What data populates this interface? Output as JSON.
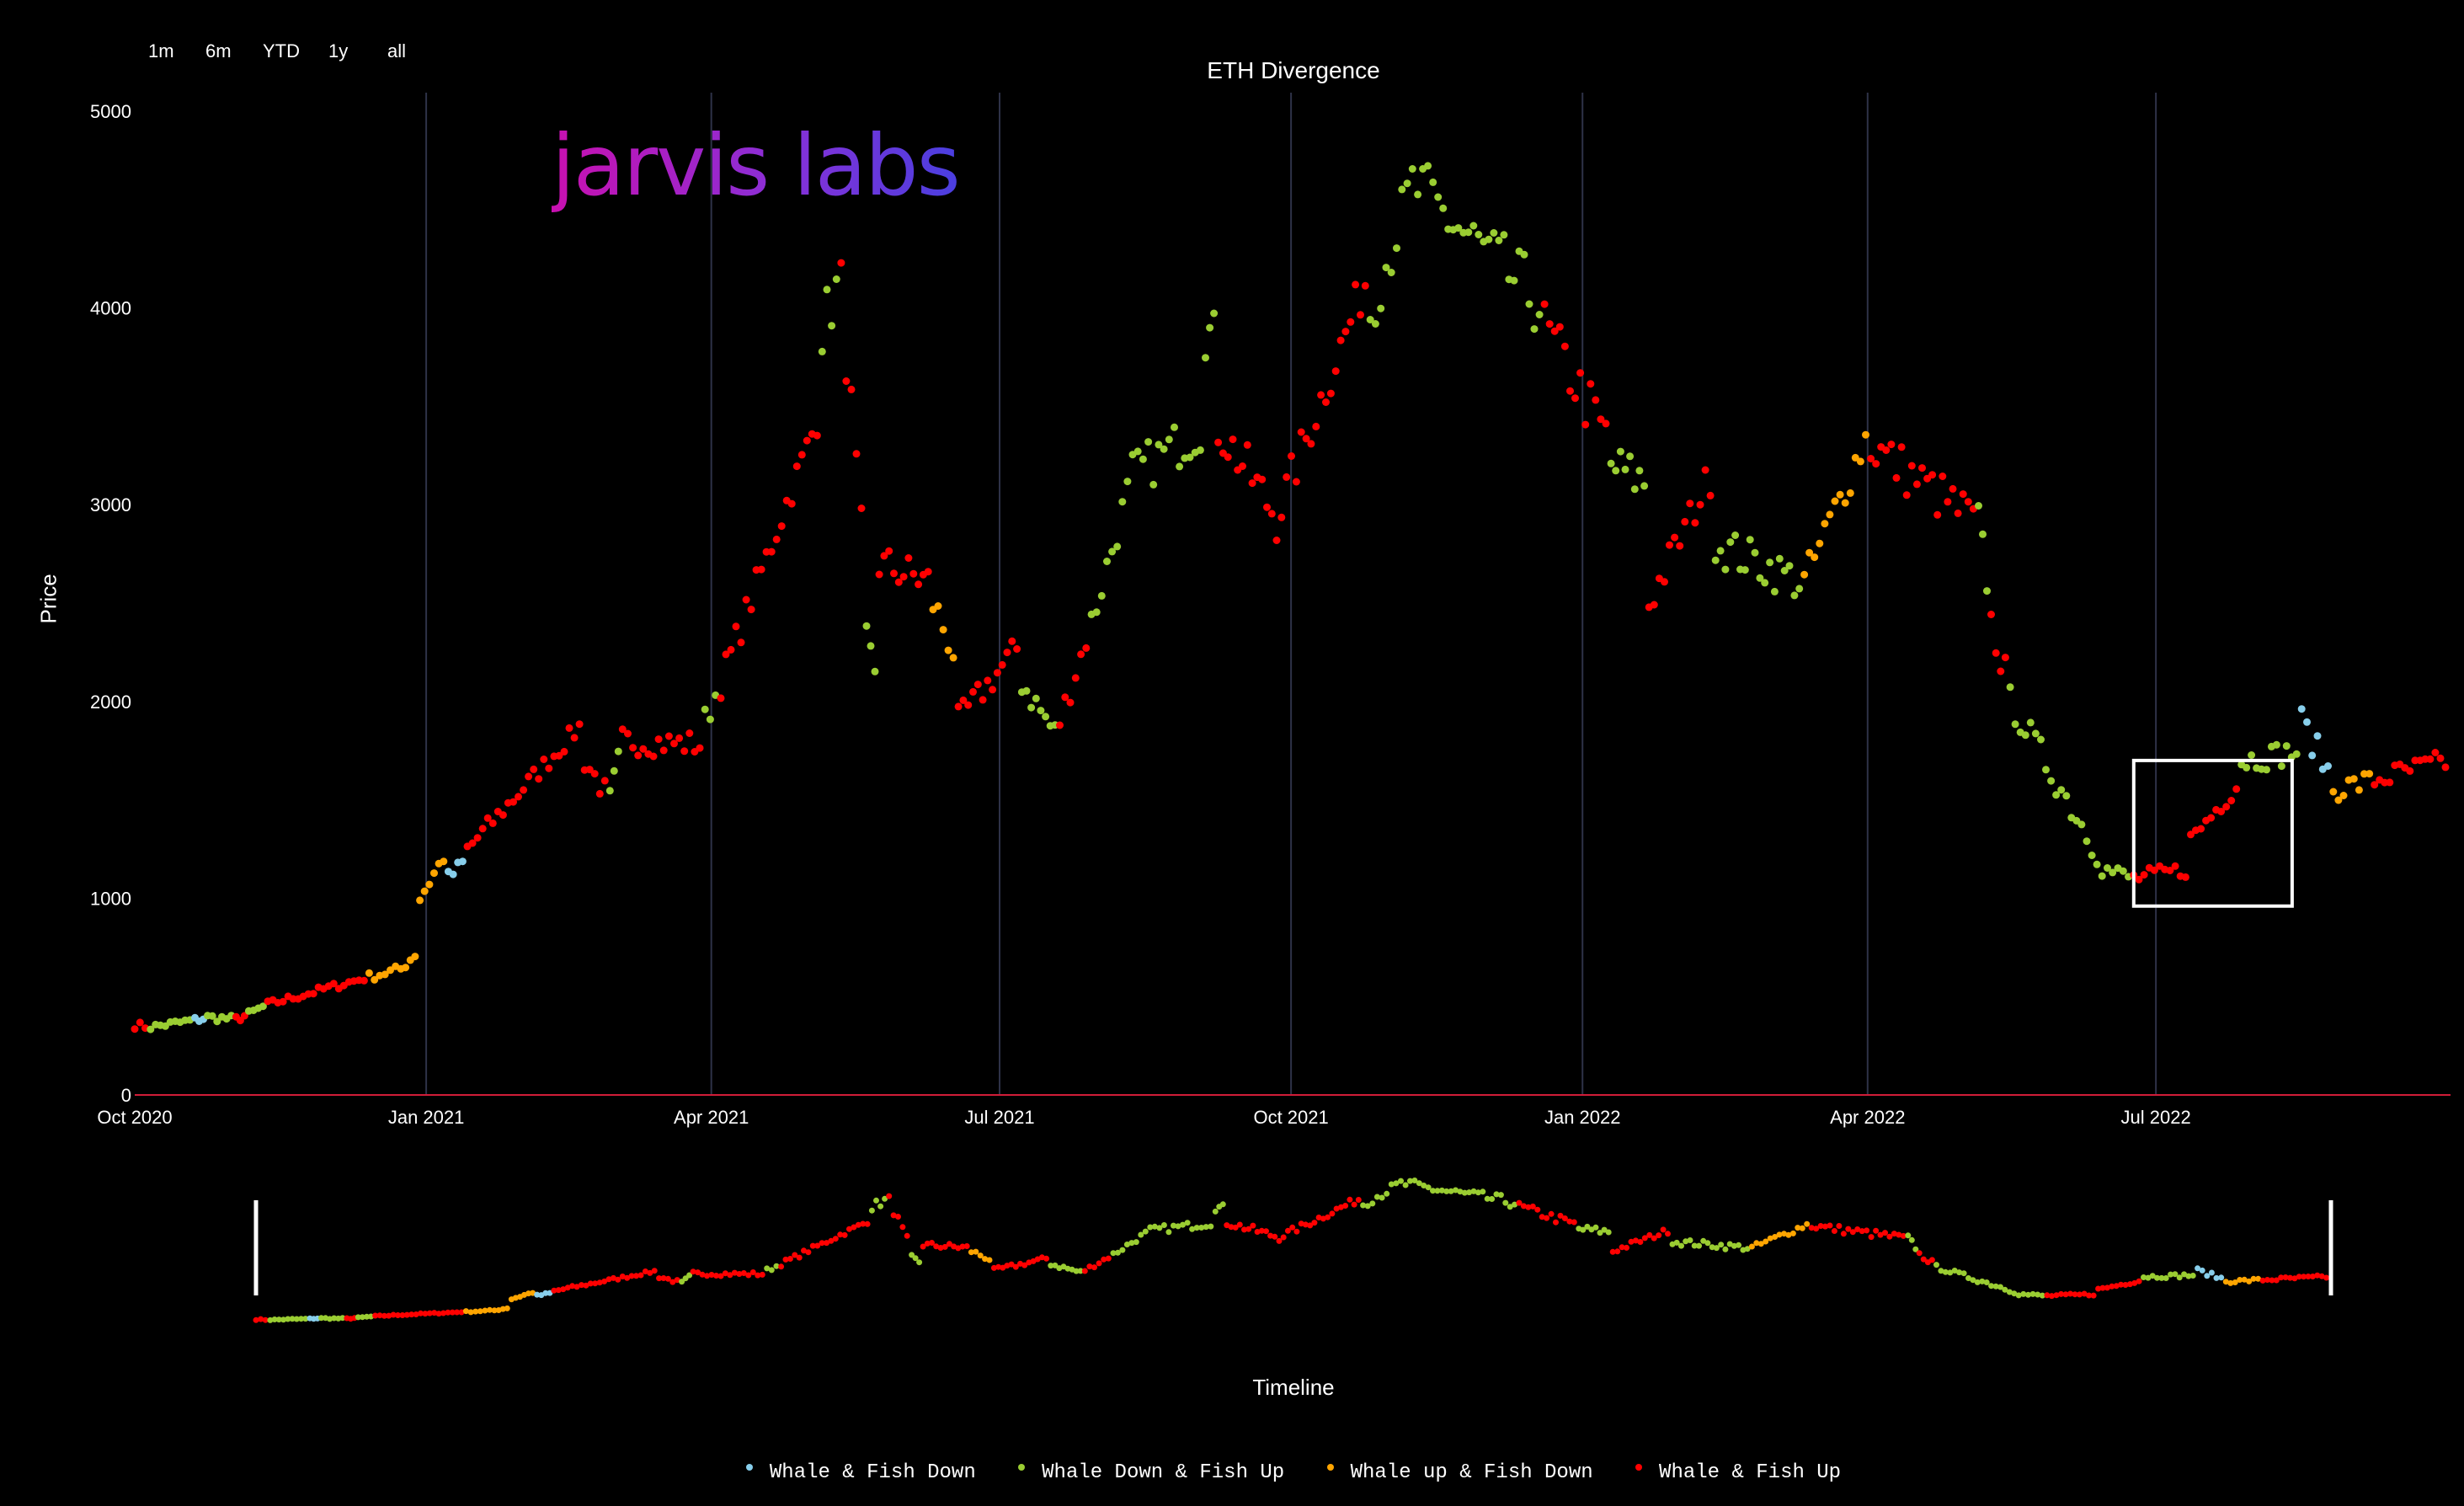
{
  "range_buttons": [
    "1m",
    "6m",
    "YTD",
    "1y",
    "all"
  ],
  "logo_text": "jarvis labs",
  "colors": {
    "background": "#000000",
    "whale_fish_down": "#87ceeb",
    "whale_down_fish_up": "#9acd32",
    "whale_up_fish_down": "#ffa500",
    "whale_fish_up": "#ff0000",
    "zero_line": "#d01c38",
    "gridline": "#2e3248",
    "highlight_box": "#ffffff"
  },
  "chart_data": {
    "type": "scatter",
    "title": "ETH Divergence",
    "xlabel": "Timeline",
    "ylabel": "Price",
    "ylim": [
      0,
      5000
    ],
    "xlim": [
      "2020-10-01",
      "2022-10-02"
    ],
    "y_ticks": [
      "0",
      "1000",
      "2000",
      "3000",
      "4000",
      "5000"
    ],
    "x_ticks": [
      {
        "date": "2020-10-01",
        "label": "Oct 2020"
      },
      {
        "date": "2021-01-01",
        "label": "Jan 2021"
      },
      {
        "date": "2021-04-01",
        "label": "Apr 2021"
      },
      {
        "date": "2021-07-01",
        "label": "Jul 2021"
      },
      {
        "date": "2021-10-01",
        "label": "Oct 2021"
      },
      {
        "date": "2022-01-01",
        "label": "Jan 2022"
      },
      {
        "date": "2022-04-01",
        "label": "Apr 2022"
      },
      {
        "date": "2022-07-01",
        "label": "Jul 2022"
      }
    ],
    "grid": "vertical",
    "legend_position": "bottom-center",
    "categories": [
      {
        "key": "D",
        "name": "Whale & Fish Down",
        "color": "#87ceeb"
      },
      {
        "key": "G",
        "name": "Whale Down & Fish Up",
        "color": "#9acd32"
      },
      {
        "key": "O",
        "name": "Whale up & Fish Down",
        "color": "#ffa500"
      },
      {
        "key": "R",
        "name": "Whale & Fish Up",
        "color": "#ff0000"
      }
    ],
    "highlight_box": {
      "x": [
        "2022-06-24",
        "2022-08-13"
      ],
      "y": [
        960,
        1700
      ]
    },
    "segments": [
      {
        "from": "2020-10-01",
        "to": "2020-10-06",
        "p0": 355,
        "p1": 345,
        "cat": "R"
      },
      {
        "from": "2020-10-06",
        "to": "2020-10-20",
        "p0": 345,
        "p1": 380,
        "cat": "G"
      },
      {
        "from": "2020-10-20",
        "to": "2020-10-24",
        "p0": 380,
        "p1": 395,
        "cat": "D"
      },
      {
        "from": "2020-10-24",
        "to": "2020-11-02",
        "p0": 395,
        "p1": 385,
        "cat": "G"
      },
      {
        "from": "2020-11-02",
        "to": "2020-11-06",
        "p0": 385,
        "p1": 410,
        "cat": "R"
      },
      {
        "from": "2020-11-06",
        "to": "2020-11-12",
        "p0": 410,
        "p1": 460,
        "cat": "G"
      },
      {
        "from": "2020-11-12",
        "to": "2020-12-14",
        "p0": 460,
        "p1": 600,
        "cat": "R"
      },
      {
        "from": "2020-12-14",
        "to": "2020-12-24",
        "p0": 600,
        "p1": 640,
        "cat": "O"
      },
      {
        "from": "2020-12-24",
        "to": "2020-12-30",
        "p0": 640,
        "p1": 740,
        "cat": "O"
      },
      {
        "from": "2020-12-30",
        "to": "2021-01-08",
        "p0": 1000,
        "p1": 1250,
        "cat": "O"
      },
      {
        "from": "2021-01-08",
        "to": "2021-01-14",
        "p0": 1100,
        "p1": 1200,
        "cat": "D"
      },
      {
        "from": "2021-01-14",
        "to": "2021-02-20",
        "p0": 1250,
        "p1": 1900,
        "cat": "R"
      },
      {
        "from": "2021-02-20",
        "to": "2021-02-28",
        "p0": 1700,
        "p1": 1500,
        "cat": "R"
      },
      {
        "from": "2021-02-28",
        "to": "2021-03-04",
        "p0": 1500,
        "p1": 1800,
        "cat": "G"
      },
      {
        "from": "2021-03-04",
        "to": "2021-03-30",
        "p0": 1800,
        "p1": 1780,
        "cat": "R"
      },
      {
        "from": "2021-03-30",
        "to": "2021-04-04",
        "p0": 1900,
        "p1": 2100,
        "cat": "G"
      },
      {
        "from": "2021-04-04",
        "to": "2021-05-06",
        "p0": 2100,
        "p1": 3500,
        "cat": "R"
      },
      {
        "from": "2021-05-06",
        "to": "2021-05-12",
        "p0": 3900,
        "p1": 4150,
        "cat": "G"
      },
      {
        "from": "2021-05-12",
        "to": "2021-05-20",
        "p0": 4100,
        "p1": 2500,
        "cat": "R"
      },
      {
        "from": "2021-05-20",
        "to": "2021-05-24",
        "p0": 2300,
        "p1": 2100,
        "cat": "G"
      },
      {
        "from": "2021-05-24",
        "to": "2021-06-10",
        "p0": 2700,
        "p1": 2600,
        "cat": "R"
      },
      {
        "from": "2021-06-10",
        "to": "2021-06-18",
        "p0": 2500,
        "p1": 2200,
        "cat": "O"
      },
      {
        "from": "2021-06-18",
        "to": "2021-07-08",
        "p0": 1900,
        "p1": 2300,
        "cat": "R"
      },
      {
        "from": "2021-07-08",
        "to": "2021-07-20",
        "p0": 2100,
        "p1": 1800,
        "cat": "G"
      },
      {
        "from": "2021-07-20",
        "to": "2021-07-30",
        "p0": 1900,
        "p1": 2400,
        "cat": "R"
      },
      {
        "from": "2021-07-30",
        "to": "2021-08-12",
        "p0": 2400,
        "p1": 3150,
        "cat": "G"
      },
      {
        "from": "2021-08-12",
        "to": "2021-09-04",
        "p0": 3150,
        "p1": 3400,
        "cat": "G"
      },
      {
        "from": "2021-09-04",
        "to": "2021-09-08",
        "p0": 3900,
        "p1": 3800,
        "cat": "G"
      },
      {
        "from": "2021-09-08",
        "to": "2021-09-28",
        "p0": 3400,
        "p1": 2900,
        "cat": "R"
      },
      {
        "from": "2021-09-28",
        "to": "2021-10-26",
        "p0": 3000,
        "p1": 4200,
        "cat": "R"
      },
      {
        "from": "2021-10-26",
        "to": "2021-11-10",
        "p0": 4000,
        "p1": 4700,
        "cat": "G"
      },
      {
        "from": "2021-11-10",
        "to": "2021-12-20",
        "p0": 4600,
        "p1": 4000,
        "cat": "G"
      },
      {
        "from": "2021-12-20",
        "to": "2022-01-10",
        "p0": 3900,
        "p1": 3300,
        "cat": "R"
      },
      {
        "from": "2022-01-10",
        "to": "2022-01-22",
        "p0": 3200,
        "p1": 3100,
        "cat": "G"
      },
      {
        "from": "2022-01-22",
        "to": "2022-02-12",
        "p0": 2500,
        "p1": 3200,
        "cat": "R"
      },
      {
        "from": "2022-02-12",
        "to": "2022-03-12",
        "p0": 2800,
        "p1": 2600,
        "cat": "G"
      },
      {
        "from": "2022-03-12",
        "to": "2022-04-02",
        "p0": 2600,
        "p1": 3400,
        "cat": "O"
      },
      {
        "from": "2022-04-02",
        "to": "2022-05-06",
        "p0": 3300,
        "p1": 2900,
        "cat": "R"
      },
      {
        "from": "2022-05-06",
        "to": "2022-05-10",
        "p0": 2900,
        "p1": 2500,
        "cat": "G"
      },
      {
        "from": "2022-05-10",
        "to": "2022-05-16",
        "p0": 2400,
        "p1": 2050,
        "cat": "R"
      },
      {
        "from": "2022-05-16",
        "to": "2022-06-14",
        "p0": 2000,
        "p1": 1200,
        "cat": "G"
      },
      {
        "from": "2022-06-14",
        "to": "2022-06-24",
        "p0": 1150,
        "p1": 1100,
        "cat": "G"
      },
      {
        "from": "2022-06-24",
        "to": "2022-07-12",
        "p0": 1100,
        "p1": 1150,
        "cat": "R"
      },
      {
        "from": "2022-07-12",
        "to": "2022-07-28",
        "p0": 1300,
        "p1": 1600,
        "cat": "R"
      },
      {
        "from": "2022-07-28",
        "to": "2022-08-16",
        "p0": 1700,
        "p1": 1750,
        "cat": "G"
      },
      {
        "from": "2022-08-16",
        "to": "2022-08-26",
        "p0": 1900,
        "p1": 1600,
        "cat": "D"
      },
      {
        "from": "2022-08-26",
        "to": "2022-09-08",
        "p0": 1550,
        "p1": 1600,
        "cat": "O"
      },
      {
        "from": "2022-09-08",
        "to": "2022-10-02",
        "p0": 1600,
        "p1": 1700,
        "cat": "R"
      }
    ]
  },
  "legend": [
    "Whale & Fish Down",
    "Whale Down & Fish Up",
    "Whale up & Fish Down",
    "Whale & Fish Up"
  ]
}
